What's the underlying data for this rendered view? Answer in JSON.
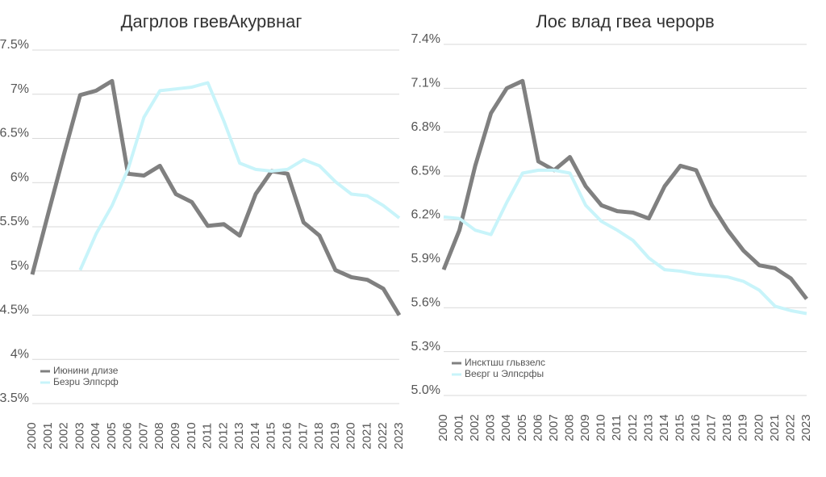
{
  "chart_data": [
    {
      "type": "line",
      "title": "Дагрлов гвевАкурвнаг",
      "categories": [
        "2000",
        "2001",
        "2002",
        "2003",
        "2004",
        "2005",
        "2006",
        "2007",
        "2008",
        "2009",
        "2010",
        "2011",
        "2012",
        "2013",
        "2014",
        "2015",
        "2016",
        "2017",
        "2018",
        "2019",
        "2020",
        "2021",
        "2022",
        "2023"
      ],
      "series": [
        {
          "name": "Июнини длизе",
          "color": "#808080",
          "values": [
            4.96,
            5.65,
            6.33,
            6.99,
            7.04,
            7.15,
            6.1,
            6.08,
            6.19,
            5.87,
            5.78,
            5.51,
            5.53,
            5.4,
            5.87,
            6.13,
            6.1,
            5.55,
            5.4,
            5.01,
            4.93,
            4.9,
            4.8,
            4.5
          ]
        },
        {
          "name": "Безрu Элпсрф",
          "color": "#c8f4fa",
          "values": [
            null,
            null,
            null,
            5.01,
            5.42,
            5.74,
            6.15,
            6.74,
            7.04,
            7.06,
            7.08,
            7.13,
            6.7,
            6.22,
            6.15,
            6.13,
            6.15,
            6.26,
            6.19,
            6.01,
            5.87,
            5.85,
            5.74,
            5.6
          ]
        }
      ],
      "ylim": [
        3.5,
        7.5
      ],
      "yticks": [
        {
          "value": 3.5,
          "label": "3.5%"
        },
        {
          "value": 4,
          "label": "4%"
        },
        {
          "value": 4.5,
          "label": "4.5%"
        },
        {
          "value": 5,
          "label": "5%"
        },
        {
          "value": 5.5,
          "label": "5.5%"
        },
        {
          "value": 6,
          "label": "6%"
        },
        {
          "value": 6.5,
          "label": "6.5%"
        },
        {
          "value": 7,
          "label": "7%"
        },
        {
          "value": 7.5,
          "label": "7.5%"
        }
      ],
      "grid": true
    },
    {
      "type": "line",
      "title": "Лоє влад гвеа черорв",
      "categories": [
        "2000",
        "2001",
        "2002",
        "2003",
        "2004",
        "2005",
        "2006",
        "2007",
        "2008",
        "2009",
        "2010",
        "2011",
        "2012",
        "2013",
        "2014",
        "2015",
        "2016",
        "2017",
        "2018",
        "2019",
        "2020",
        "2021",
        "2022",
        "2023"
      ],
      "series": [
        {
          "name": "Инсктшu гльвзелс",
          "color": "#808080",
          "values": [
            5.86,
            6.13,
            6.57,
            6.93,
            7.1,
            7.15,
            6.6,
            6.54,
            6.63,
            6.43,
            6.3,
            6.26,
            6.25,
            6.21,
            6.43,
            6.57,
            6.54,
            6.3,
            6.13,
            5.99,
            5.89,
            5.87,
            5.8,
            5.66
          ]
        },
        {
          "name": "Веєрг u Элпсрфы",
          "color": "#c8f4fa",
          "values": [
            6.22,
            6.21,
            6.13,
            6.1,
            6.32,
            6.52,
            6.54,
            6.54,
            6.52,
            6.3,
            6.19,
            6.13,
            6.06,
            5.94,
            5.86,
            5.85,
            5.83,
            5.82,
            5.81,
            5.78,
            5.72,
            5.61,
            5.58,
            5.56
          ]
        }
      ],
      "ylim": [
        5.0,
        7.4
      ],
      "yticks": [
        {
          "value": 5,
          "label": "5.0%"
        },
        {
          "value": 5.3,
          "label": "5.3%"
        },
        {
          "value": 5.6,
          "label": "5.6%"
        },
        {
          "value": 5.9,
          "label": "5.9%"
        },
        {
          "value": 6.2,
          "label": "6.2%"
        },
        {
          "value": 6.5,
          "label": "6.5%"
        },
        {
          "value": 6.8,
          "label": "6.8%"
        },
        {
          "value": 7.1,
          "label": "7.1%"
        },
        {
          "value": 7.4,
          "label": "7.4%"
        }
      ],
      "grid": true
    }
  ]
}
